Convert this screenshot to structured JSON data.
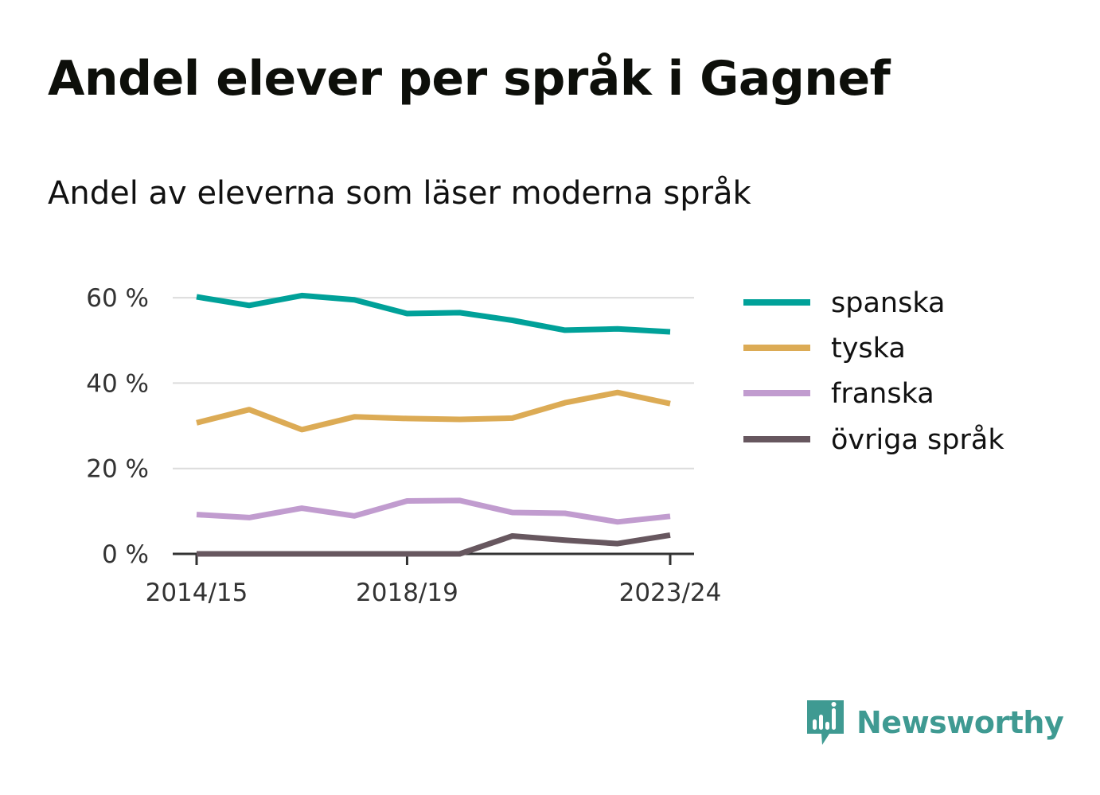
{
  "title": "Andel elever per språk i Gagnef",
  "subtitle": "Andel av eleverna som läser moderna språk",
  "brand": {
    "name": "Newsworthy",
    "color": "#3f9a92",
    "icon": "newsworthy-logo-icon"
  },
  "chart_data": {
    "type": "line",
    "x": [
      "2014/15",
      "2015/16",
      "2016/17",
      "2017/18",
      "2018/19",
      "2019/20",
      "2020/21",
      "2021/22",
      "2022/23",
      "2023/24"
    ],
    "x_tick_labels": [
      "2014/15",
      "2018/19",
      "2023/24"
    ],
    "ylim": [
      0,
      65
    ],
    "y_ticks": [
      0,
      20,
      40,
      60
    ],
    "y_tick_labels": [
      "0 %",
      "20 %",
      "40 %",
      "60 %"
    ],
    "grid": true,
    "legend_position": "right",
    "series": [
      {
        "name": "spanska",
        "color": "#00a199",
        "values": [
          60.2,
          58.2,
          60.5,
          59.5,
          56.3,
          56.5,
          54.7,
          52.4,
          52.7,
          52.0
        ]
      },
      {
        "name": "tyska",
        "color": "#dcab55",
        "values": [
          30.7,
          33.8,
          29.1,
          32.1,
          31.7,
          31.5,
          31.8,
          35.4,
          37.8,
          35.2
        ]
      },
      {
        "name": "franska",
        "color": "#c19ccf",
        "values": [
          9.2,
          8.5,
          10.7,
          8.9,
          12.4,
          12.5,
          9.7,
          9.5,
          7.5,
          8.8
        ]
      },
      {
        "name": "övriga språk",
        "color": "#67575f",
        "values": [
          0,
          0,
          0,
          0,
          0,
          0,
          4.2,
          3.2,
          2.4,
          4.4
        ]
      }
    ]
  }
}
